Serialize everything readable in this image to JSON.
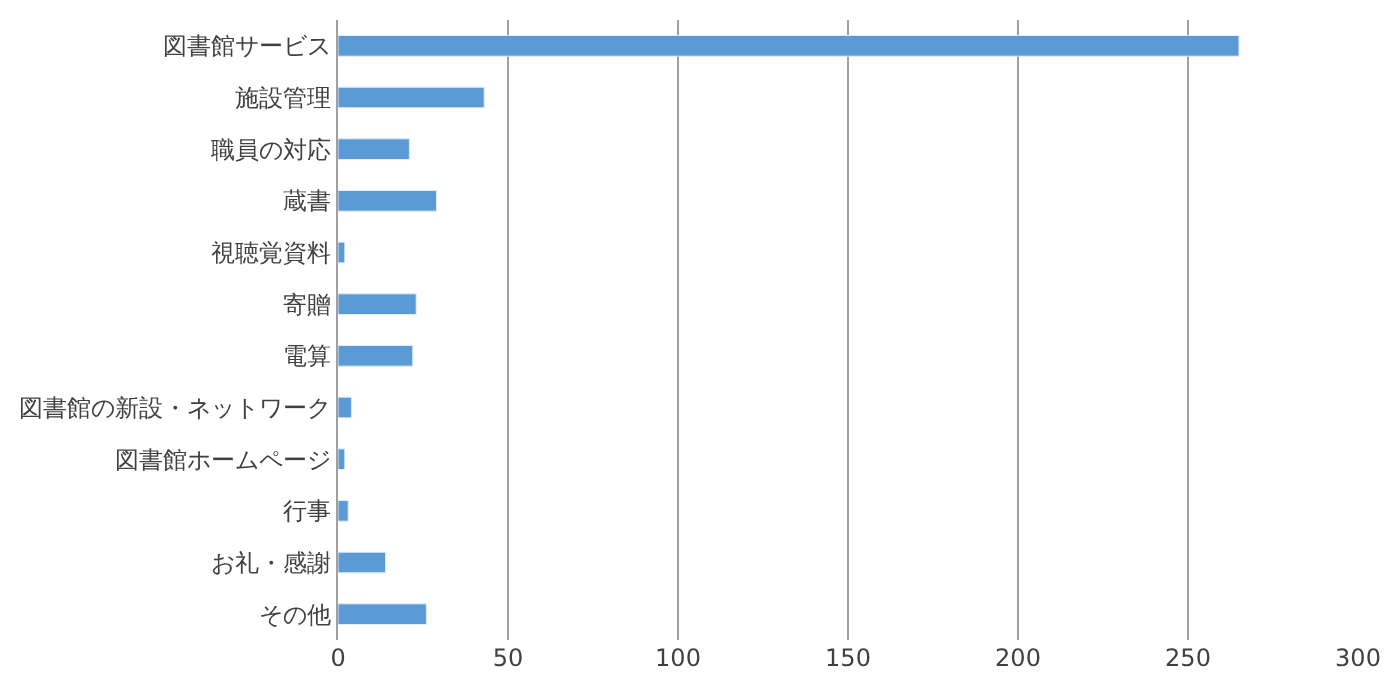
{
  "chart_data": {
    "type": "bar",
    "orientation": "horizontal",
    "categories": [
      "図書館サービス",
      "施設管理",
      "職員の対応",
      "蔵書",
      "視聴覚資料",
      "寄贈",
      "電算",
      "図書館の新設・ネットワーク",
      "図書館ホームページ",
      "行事",
      "お礼・感謝",
      "その他"
    ],
    "values": [
      265,
      43,
      21,
      29,
      2,
      23,
      22,
      4,
      2,
      3,
      14,
      26
    ],
    "color": "#5b9bd5",
    "xlim": [
      0,
      300
    ],
    "xticks": [
      0,
      50,
      100,
      150,
      200,
      250,
      300
    ],
    "grid": "x",
    "legend": false
  }
}
